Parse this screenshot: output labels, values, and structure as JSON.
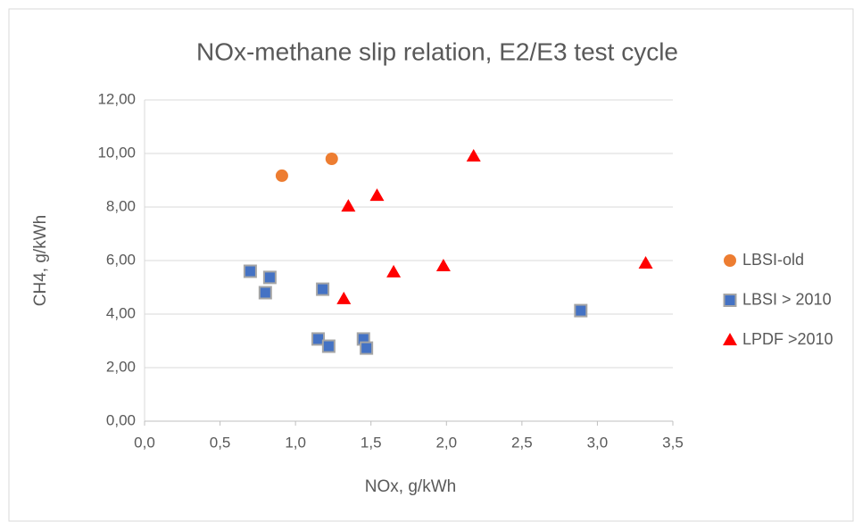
{
  "chart_data": {
    "type": "scatter",
    "title": "NOx-methane slip relation, E2/E3 test cycle",
    "x_label": "NOx, g/kWh",
    "y_label": "CH4, g/kWh",
    "xlim": [
      0,
      3.5
    ],
    "xticks": [
      {
        "value": 0,
        "label": "0,0"
      },
      {
        "value": 0.5,
        "label": "0,5"
      },
      {
        "value": 1,
        "label": "1,0"
      },
      {
        "value": 1.5,
        "label": "1,5"
      },
      {
        "value": 2,
        "label": "2,0"
      },
      {
        "value": 2.5,
        "label": "2,5"
      },
      {
        "value": 3,
        "label": "3,0"
      },
      {
        "value": 3.5,
        "label": "3,5"
      }
    ],
    "ylim": [
      0,
      12
    ],
    "yticks": [
      {
        "value": 0,
        "label": "0,00"
      },
      {
        "value": 2,
        "label": "2,00"
      },
      {
        "value": 4,
        "label": "4,00"
      },
      {
        "value": 6,
        "label": "6,00"
      },
      {
        "value": 8,
        "label": "8,00"
      },
      {
        "value": 10,
        "label": "10,00"
      },
      {
        "value": 12,
        "label": "12,00"
      }
    ],
    "grid": true,
    "legend": "right",
    "series": [
      {
        "name": "LBSI-old",
        "color": "#ED7D31",
        "marker": "circle",
        "x": [
          0.91,
          1.24
        ],
        "values": [
          9.17,
          9.8
        ]
      },
      {
        "name": "LBSI > 2010",
        "color": "#4472C4",
        "marker": "square",
        "x": [
          0.7,
          0.83,
          0.8,
          1.18,
          1.15,
          1.22,
          1.45,
          1.47,
          2.89
        ],
        "values": [
          5.6,
          5.37,
          4.8,
          4.93,
          3.07,
          2.8,
          3.07,
          2.73,
          4.13
        ]
      },
      {
        "name": "LPDF >2010",
        "color": "#FF0000",
        "marker": "triangle",
        "x": [
          2.18,
          1.54,
          1.35,
          1.65,
          1.98,
          1.32,
          3.32
        ],
        "values": [
          9.9,
          8.43,
          8.03,
          5.57,
          5.8,
          4.57,
          5.9
        ]
      }
    ]
  }
}
